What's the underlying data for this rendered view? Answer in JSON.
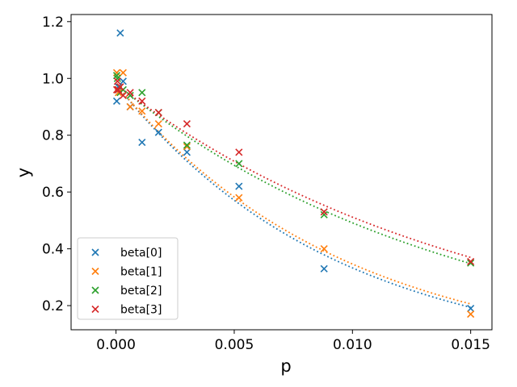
{
  "chart_data": {
    "type": "scatter",
    "title": "",
    "xlabel": "p",
    "ylabel": "y",
    "xlim": [
      -0.0019,
      0.0159
    ],
    "ylim": [
      0.115,
      1.225
    ],
    "xticks": [
      0.0,
      0.005,
      0.01,
      0.015
    ],
    "xtick_labels": [
      "0.000",
      "0.005",
      "0.010",
      "0.015"
    ],
    "yticks": [
      0.2,
      0.4,
      0.6,
      0.8,
      1.0,
      1.2
    ],
    "ytick_labels": [
      "0.2",
      "0.4",
      "0.6",
      "0.8",
      "1.0",
      "1.2"
    ],
    "grid": false,
    "legend": "lower-left",
    "series": [
      {
        "name": "beta[0]",
        "color": "#1f77b4",
        "points": [
          [
            3e-05,
            0.92
          ],
          [
            6e-05,
            0.96
          ],
          [
            0.0001,
            0.97
          ],
          [
            0.00018,
            1.16
          ],
          [
            0.0003,
            0.99
          ],
          [
            0.0006,
            0.9
          ],
          [
            0.0011,
            0.775
          ],
          [
            0.0018,
            0.81
          ],
          [
            0.003,
            0.74
          ],
          [
            0.0052,
            0.62
          ],
          [
            0.0088,
            0.33
          ],
          [
            0.015,
            0.19
          ]
        ],
        "fit": {
          "a": 0.98,
          "k": 108,
          "c": 0
        }
      },
      {
        "name": "beta[1]",
        "color": "#ff7f0e",
        "points": [
          [
            3e-05,
            1.02
          ],
          [
            6e-05,
            0.96
          ],
          [
            0.0001,
            0.95
          ],
          [
            0.00018,
            0.97
          ],
          [
            0.0003,
            1.02
          ],
          [
            0.0006,
            0.9
          ],
          [
            0.0011,
            0.885
          ],
          [
            0.0018,
            0.84
          ],
          [
            0.003,
            0.76
          ],
          [
            0.0052,
            0.58
          ],
          [
            0.0088,
            0.4
          ],
          [
            0.015,
            0.17
          ]
        ],
        "fit": {
          "a": 0.98,
          "k": 104,
          "c": 0
        }
      },
      {
        "name": "beta[2]",
        "color": "#2ca02c",
        "points": [
          [
            3e-05,
            1.01
          ],
          [
            6e-05,
            1.0
          ],
          [
            0.0001,
            0.96
          ],
          [
            0.00018,
            0.95
          ],
          [
            0.0003,
            0.96
          ],
          [
            0.0006,
            0.94
          ],
          [
            0.0011,
            0.95
          ],
          [
            0.0018,
            0.88
          ],
          [
            0.003,
            0.765
          ],
          [
            0.0052,
            0.7
          ],
          [
            0.0088,
            0.52
          ],
          [
            0.015,
            0.35
          ]
        ],
        "fit": {
          "a": 0.98,
          "k": 69,
          "c": 0
        }
      },
      {
        "name": "beta[3]",
        "color": "#d62728",
        "points": [
          [
            3e-05,
            0.96
          ],
          [
            6e-05,
            0.99
          ],
          [
            0.0001,
            0.96
          ],
          [
            0.00018,
            0.97
          ],
          [
            0.0003,
            0.94
          ],
          [
            0.0006,
            0.95
          ],
          [
            0.0011,
            0.92
          ],
          [
            0.0018,
            0.88
          ],
          [
            0.003,
            0.84
          ],
          [
            0.0052,
            0.74
          ],
          [
            0.0088,
            0.53
          ],
          [
            0.015,
            0.355
          ]
        ],
        "fit": {
          "a": 0.98,
          "k": 65,
          "c": 0
        }
      }
    ]
  }
}
